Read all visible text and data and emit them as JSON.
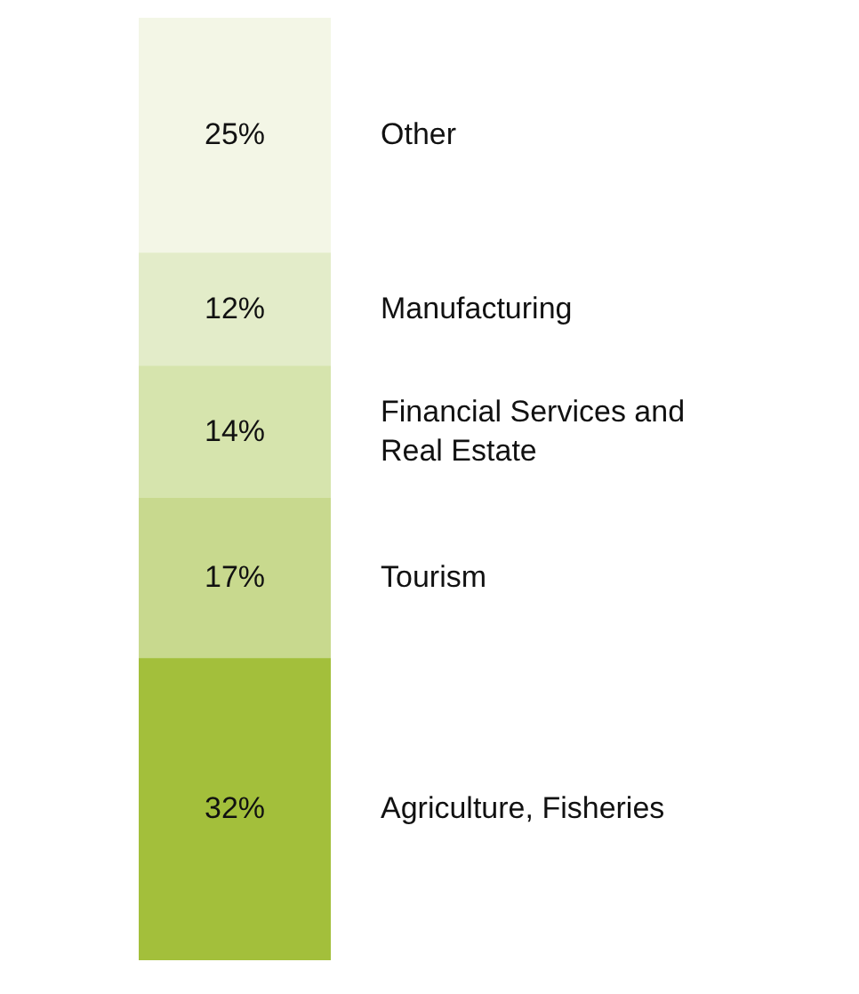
{
  "chart_data": {
    "type": "bar",
    "stacked": true,
    "categories": [
      null
    ],
    "legend": false,
    "series": [
      {
        "name": "Agriculture, Fisheries",
        "color": "#a3bf3b",
        "values": [
          32
        ],
        "value_labels": [
          "32%"
        ]
      },
      {
        "name": "Tourism",
        "color": "#c8d98e",
        "values": [
          17
        ],
        "value_labels": [
          "17%"
        ]
      },
      {
        "name": "Financial Services and Real Estate",
        "color": "#d6e4ad",
        "values": [
          14
        ],
        "value_labels": [
          "14%"
        ]
      },
      {
        "name": "Manufacturing",
        "color": "#e3ecc9",
        "values": [
          12
        ],
        "value_labels": [
          "12%"
        ]
      },
      {
        "name": "Other",
        "color": "#f3f6e6",
        "values": [
          25
        ],
        "value_labels": [
          "25%"
        ]
      }
    ]
  }
}
